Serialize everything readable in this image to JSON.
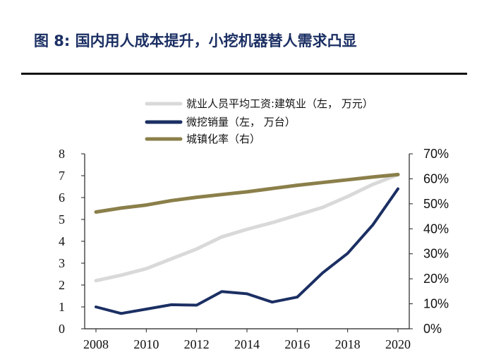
{
  "header": {
    "title": "图 8: 国内用人成本提升，小挖机器替人需求凸显"
  },
  "chart_data": {
    "type": "line",
    "x": [
      2008,
      2009,
      2010,
      2011,
      2012,
      2013,
      2014,
      2015,
      2016,
      2017,
      2018,
      2019,
      2020
    ],
    "x_ticks": [
      "2008",
      "2010",
      "2012",
      "2014",
      "2016",
      "2018",
      "2020"
    ],
    "y_left_ticks": [
      "0",
      "1",
      "2",
      "3",
      "4",
      "5",
      "6",
      "7",
      "8"
    ],
    "y_right_ticks": [
      "0%",
      "10%",
      "20%",
      "30%",
      "40%",
      "50%",
      "60%",
      "70%"
    ],
    "ylim_left": [
      0,
      8
    ],
    "ylim_right": [
      0,
      0.7
    ],
    "grid": false,
    "legend_position": "top",
    "series": [
      {
        "name": "就业人员平均工资:建筑业（左，  万元）",
        "axis": "left",
        "color": "#d9d9d9",
        "values": [
          2.2,
          2.45,
          2.75,
          3.2,
          3.65,
          4.2,
          4.55,
          4.85,
          5.2,
          5.55,
          6.05,
          6.6,
          7.05
        ]
      },
      {
        "name": "微挖销量（左，  万台）",
        "axis": "left",
        "color": "#1b2f63",
        "values": [
          1.0,
          0.7,
          0.9,
          1.1,
          1.08,
          1.7,
          1.6,
          1.22,
          1.45,
          2.55,
          3.45,
          4.75,
          6.4
        ]
      },
      {
        "name": "城镇化率（右）",
        "axis": "right",
        "color": "#8b7f4a",
        "values": [
          0.467,
          0.483,
          0.495,
          0.513,
          0.526,
          0.537,
          0.548,
          0.561,
          0.574,
          0.585,
          0.596,
          0.607,
          0.617
        ]
      }
    ]
  }
}
